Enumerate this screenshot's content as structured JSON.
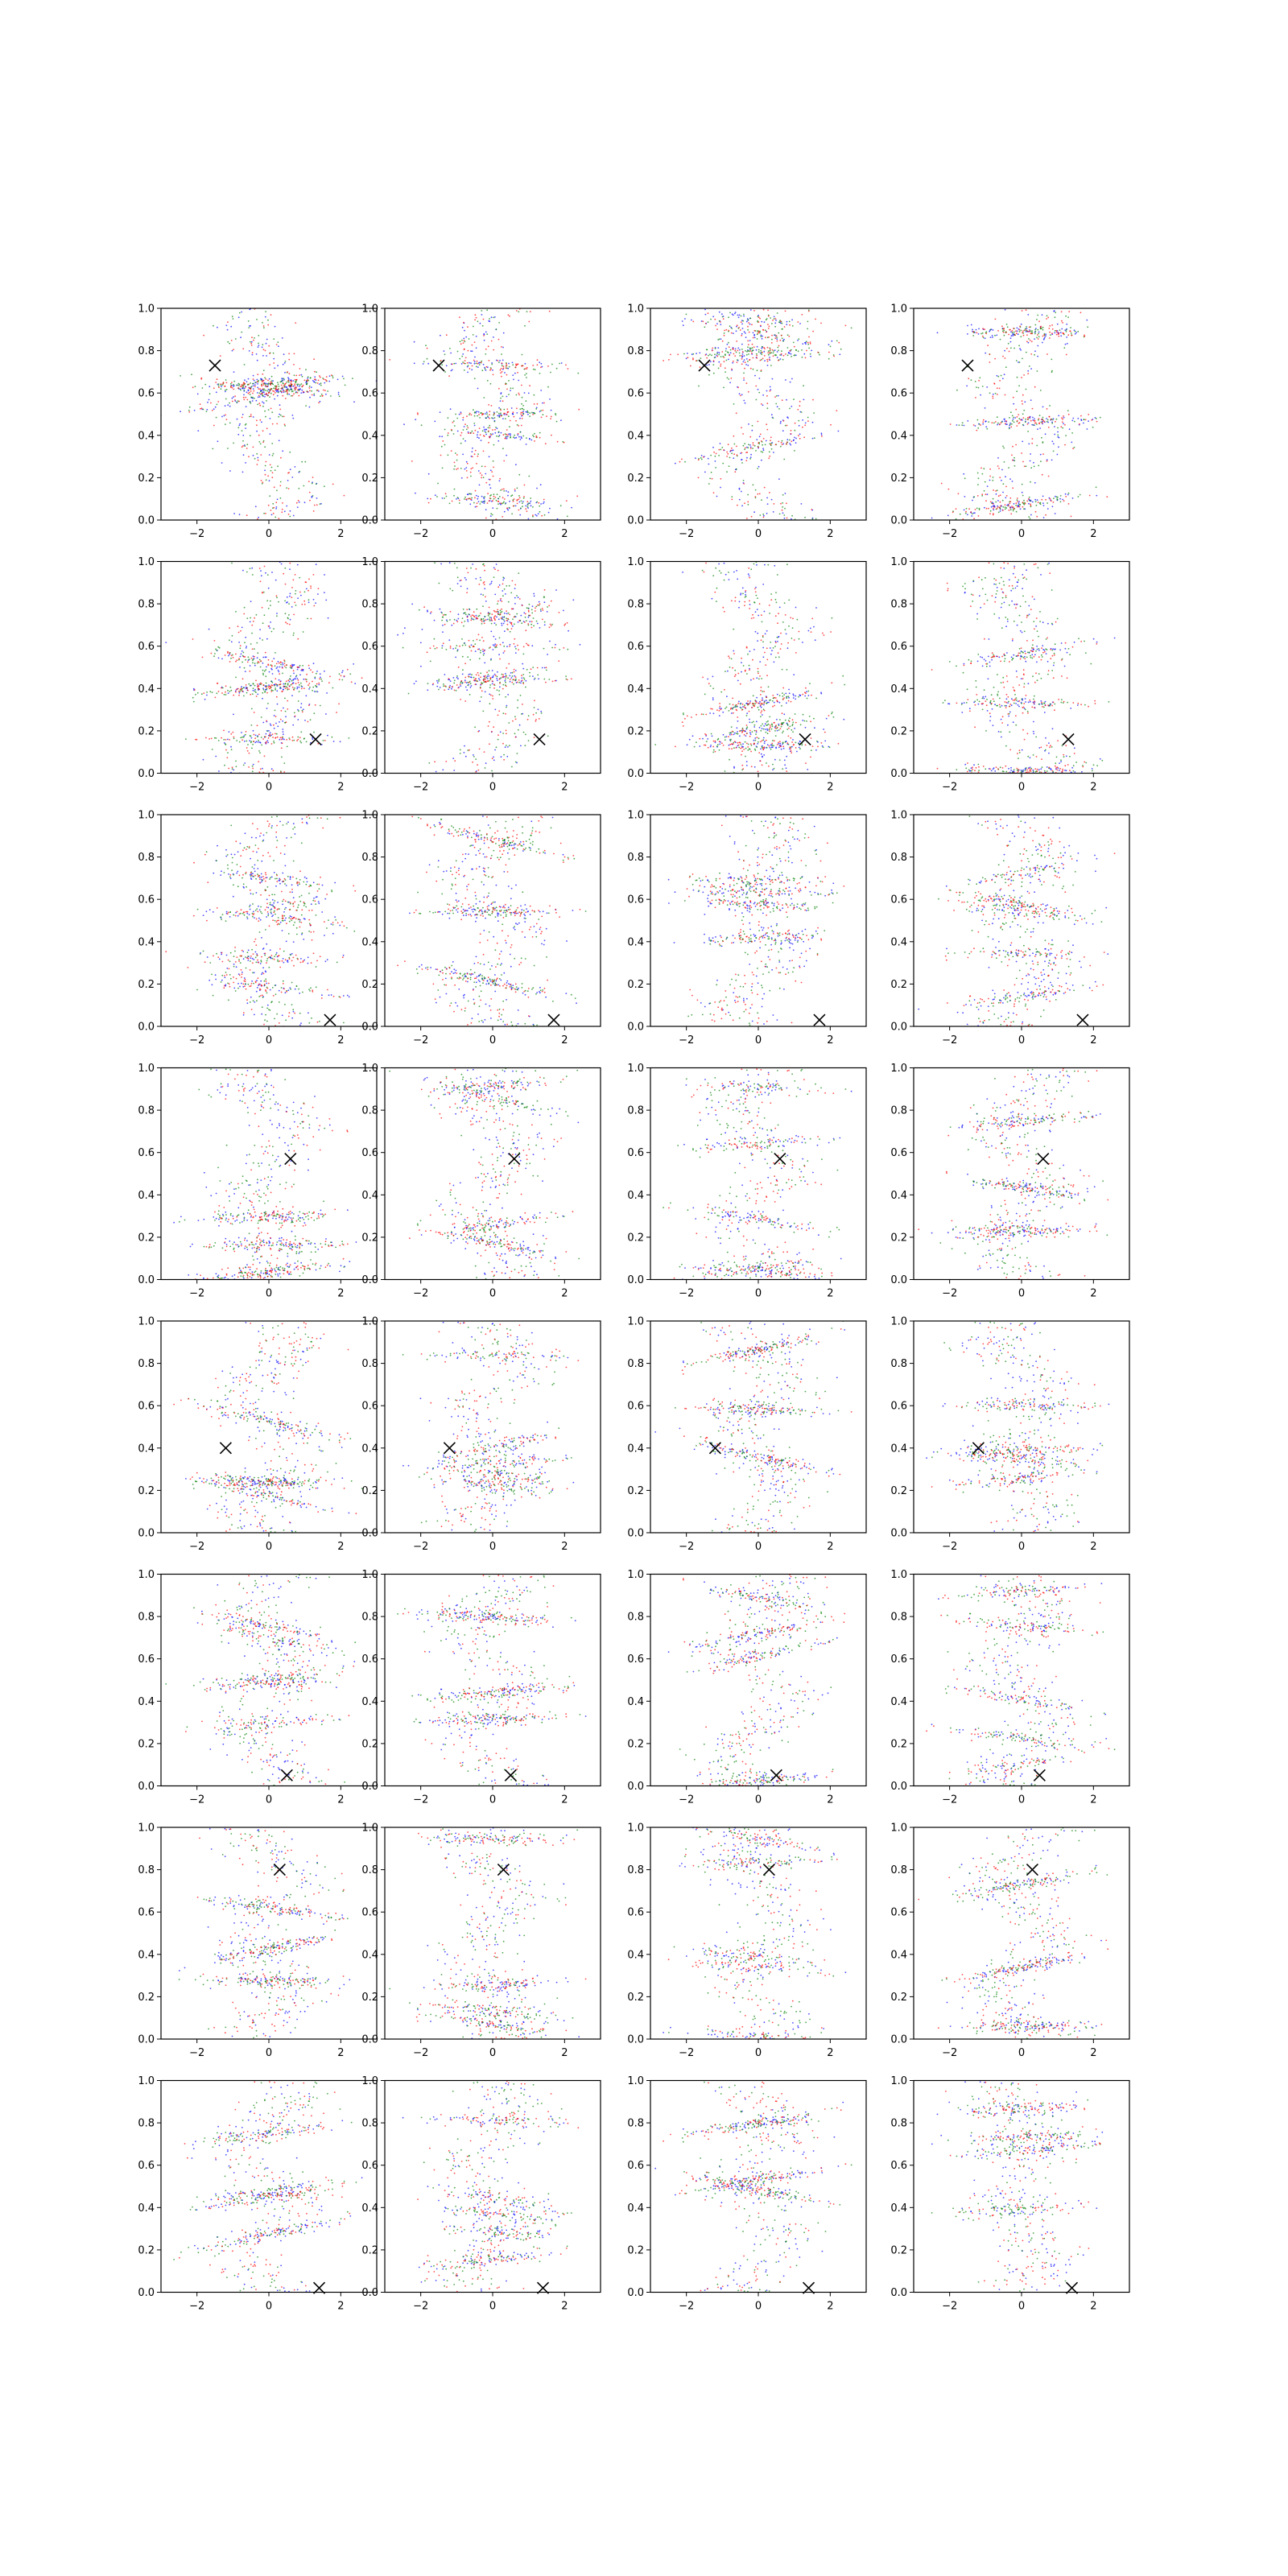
{
  "figure": {
    "rows": 8,
    "cols": 4
  },
  "colors": {
    "blue": "#0000ff",
    "green": "#008000",
    "red": "#ff0000",
    "marker": "#000000",
    "axes": "#000000"
  },
  "chart_data": {
    "type": "scatter",
    "grid": false,
    "legend": "none",
    "title": "",
    "xlabel": "",
    "ylabel": "",
    "xlim": [
      -3,
      3
    ],
    "ylim": [
      0,
      1
    ],
    "x_ticks": [
      -2,
      0,
      2
    ],
    "x_tick_labels": [
      "−2",
      "0",
      "2"
    ],
    "y_ticks": [
      0,
      0.2,
      0.4,
      0.6,
      0.8,
      1.0
    ],
    "y_tick_labels": [
      "0.0",
      "0.2",
      "0.4",
      "0.6",
      "0.8",
      "1.0"
    ],
    "series_colors": [
      "blue",
      "green",
      "red"
    ],
    "marker_symbol": "x",
    "marker_positions": [
      [
        -1.5,
        0.73
      ],
      [
        -1.5,
        0.73
      ],
      [
        -1.5,
        0.73
      ],
      [
        -1.5,
        0.73
      ],
      [
        1.3,
        0.16
      ],
      [
        1.3,
        0.16
      ],
      [
        1.3,
        0.16
      ],
      [
        1.3,
        0.16
      ],
      [
        1.7,
        0.03
      ],
      [
        1.7,
        0.03
      ],
      [
        1.7,
        0.03
      ],
      [
        1.7,
        0.03
      ],
      [
        0.6,
        0.57
      ],
      [
        0.6,
        0.57
      ],
      [
        0.6,
        0.57
      ],
      [
        0.6,
        0.57
      ],
      [
        -1.2,
        0.4
      ],
      [
        -1.2,
        0.4
      ],
      [
        -1.2,
        0.4
      ],
      [
        -1.2,
        0.4
      ],
      [
        0.5,
        0.05
      ],
      [
        0.5,
        0.05
      ],
      [
        0.5,
        0.05
      ],
      [
        0.5,
        0.05
      ],
      [
        0.3,
        0.8
      ],
      [
        0.3,
        0.8
      ],
      [
        0.3,
        0.8
      ],
      [
        0.3,
        0.8
      ],
      [
        1.4,
        0.02
      ],
      [
        1.4,
        0.02
      ],
      [
        1.4,
        0.02
      ],
      [
        1.4,
        0.02
      ]
    ]
  }
}
